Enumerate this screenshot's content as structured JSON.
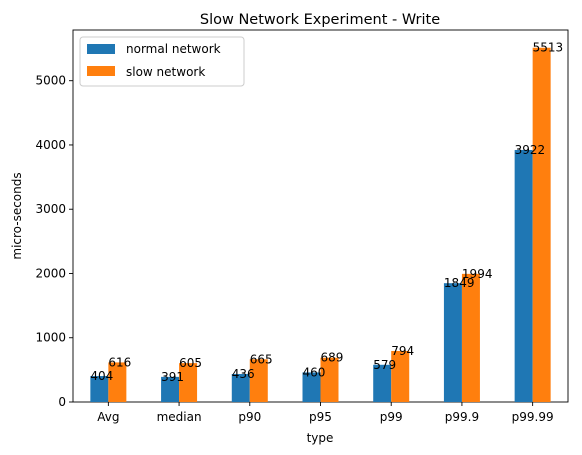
{
  "chart_data": {
    "type": "bar",
    "title": "Slow Network Experiment - Write",
    "xlabel": "type",
    "ylabel": "micro-seconds",
    "categories": [
      "Avg",
      "median",
      "p90",
      "p95",
      "p99",
      "p99.9",
      "p99.99"
    ],
    "series": [
      {
        "name": "normal network",
        "color": "#1f77b4",
        "values": [
          404,
          391,
          436,
          460,
          579,
          1849,
          3922
        ]
      },
      {
        "name": "slow network",
        "color": "#ff7f0e",
        "values": [
          616,
          605,
          665,
          689,
          794,
          1994,
          5513
        ]
      }
    ],
    "ylim": [
      0,
      5789
    ],
    "yticks": [
      0,
      1000,
      2000,
      3000,
      4000,
      5000
    ],
    "grid": false,
    "legend_position": "top-left"
  }
}
